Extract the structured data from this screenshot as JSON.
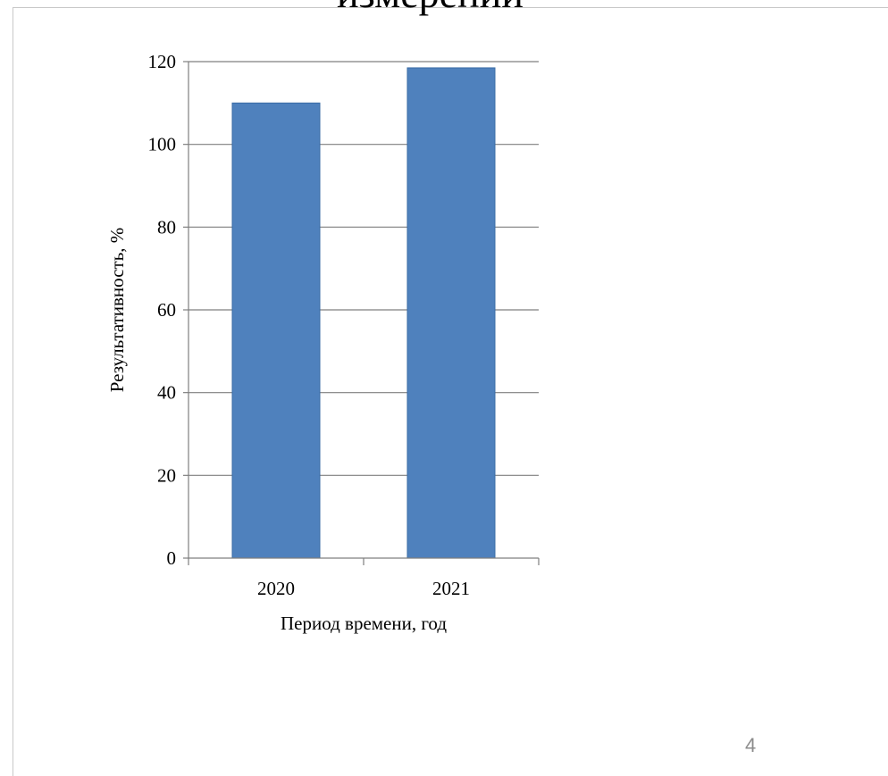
{
  "slide": {
    "title_fragment": "измерении",
    "page_number": "4"
  },
  "chart_data": {
    "type": "bar",
    "categories": [
      "2020",
      "2021"
    ],
    "values": [
      110,
      118.5
    ],
    "title": "",
    "xlabel": "Период времени, год",
    "ylabel": "Результативность, %",
    "ylim": [
      0,
      120
    ],
    "yticks": [
      0,
      20,
      40,
      60,
      80,
      100,
      120
    ],
    "grid": true,
    "legend": "none",
    "bar_color": "#4F81BD",
    "bar_edge_color": "#3A6BA5"
  }
}
